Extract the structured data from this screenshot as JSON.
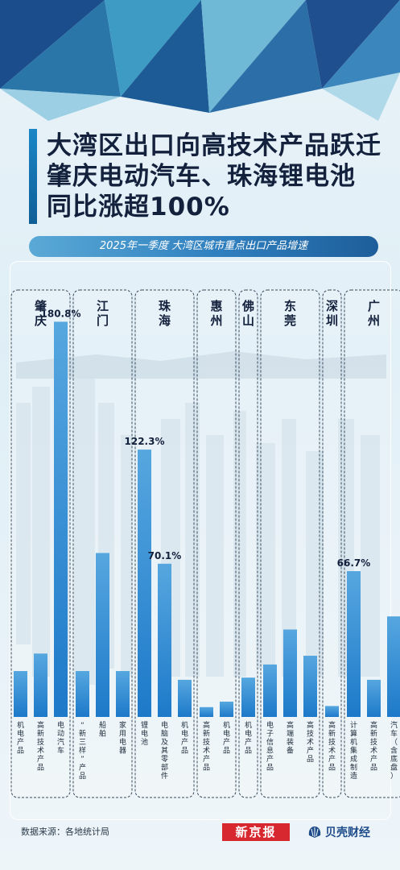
{
  "title": {
    "lines": [
      "大湾区出口向高技术产品跃迁",
      "肇庆电动汽车、珠海锂电池",
      "同比涨超100%"
    ]
  },
  "subtitle": "2025年一季度 大湾区城市重点出口产品增速",
  "source": "数据来源：各地统计局",
  "brands": {
    "xjb": "新京报",
    "bk": "贝壳财经"
  },
  "colors": {
    "bar_top": "#56a7df",
    "bar_bottom": "#1d79c9",
    "title": "#14213d",
    "accent": "#1a87c7",
    "xjb_red": "#d7282f"
  },
  "chart_data": {
    "type": "bar",
    "title": "2025年一季度 大湾区城市重点出口产品增速",
    "unit": "%",
    "cities": [
      {
        "name": "肇庆",
        "products": [
          {
            "name": "机电产品",
            "value": 21
          },
          {
            "name": "高新技术产品",
            "value": 29
          },
          {
            "name": "电动汽车",
            "value": 180.8,
            "label": "180.8%"
          }
        ]
      },
      {
        "name": "江门",
        "products": [
          {
            "name": "“新三样”产品",
            "value": 21
          },
          {
            "name": "船舶",
            "value": 75
          },
          {
            "name": "家用电器",
            "value": 21
          }
        ]
      },
      {
        "name": "珠海",
        "products": [
          {
            "name": "锂电池",
            "value": 122.3,
            "label": "122.3%"
          },
          {
            "name": "电脑及其零部件",
            "value": 70.1,
            "label": "70.1%"
          },
          {
            "name": "机电产品",
            "value": 17
          }
        ]
      },
      {
        "name": "惠州",
        "products": [
          {
            "name": "高新技术产品",
            "value": 4.5
          },
          {
            "name": "机电产品",
            "value": 7
          }
        ]
      },
      {
        "name": "佛山",
        "products": [
          {
            "name": "机电产品",
            "value": 18
          }
        ]
      },
      {
        "name": "东莞",
        "products": [
          {
            "name": "电子信息产品",
            "value": 24
          },
          {
            "name": "高端装备",
            "value": 40
          },
          {
            "name": "高技术产品",
            "value": 28
          }
        ]
      },
      {
        "name": "深圳",
        "products": [
          {
            "name": "高新技术产品",
            "value": 5
          }
        ]
      },
      {
        "name": "广州",
        "products": [
          {
            "name": "计算机集成制造",
            "value": 66.7,
            "label": "66.7%"
          },
          {
            "name": "高新技术产品",
            "value": 17
          },
          {
            "name": "汽车（含底盘）",
            "value": 46
          }
        ]
      }
    ],
    "ylim": [
      0,
      185
    ]
  }
}
